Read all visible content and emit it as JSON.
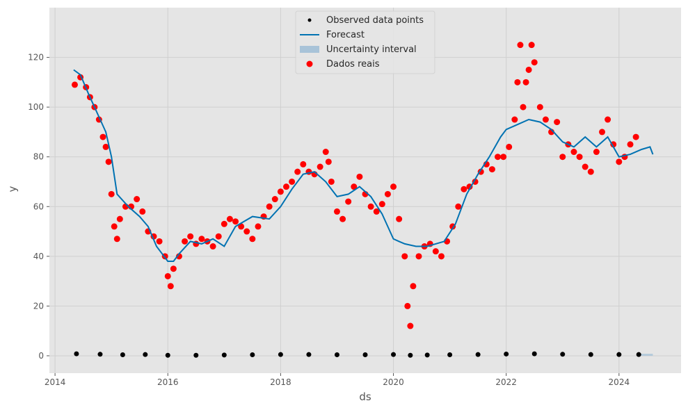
{
  "chart_data": {
    "type": "line",
    "xlabel": "ds",
    "ylabel": "y",
    "xlim": [
      2013.9,
      2025.1
    ],
    "ylim": [
      -7,
      140
    ],
    "x_ticks": [
      2014,
      2016,
      2018,
      2020,
      2022,
      2024
    ],
    "y_ticks": [
      0,
      20,
      40,
      60,
      80,
      100,
      120
    ],
    "grid": true,
    "legend_position": "top-center",
    "colors": {
      "background": "#e5e5e5",
      "grid": "#cfcfcf",
      "observed": "#000000",
      "forecast": "#0072B2",
      "uncertainty": "#a8c3d8",
      "actual": "#ff0000"
    },
    "legend": [
      {
        "label": "Observed data points",
        "kind": "dot"
      },
      {
        "label": "Forecast",
        "kind": "line"
      },
      {
        "label": "Uncertainty interval",
        "kind": "band"
      },
      {
        "label": "Dados reais",
        "kind": "marker"
      }
    ],
    "series": [
      {
        "name": "Observed data points",
        "kind": "scatter",
        "x": [
          2014.38,
          2014.8,
          2015.2,
          2015.6,
          2016.0,
          2016.5,
          2017.0,
          2017.5,
          2018.0,
          2018.5,
          2019.0,
          2019.5,
          2020.0,
          2020.3,
          2020.6,
          2021.0,
          2021.5,
          2022.0,
          2022.5,
          2023.0,
          2023.5,
          2024.0,
          2024.35
        ],
        "y": [
          0.8,
          0.6,
          0.4,
          0.5,
          0.2,
          0.2,
          0.3,
          0.4,
          0.5,
          0.5,
          0.4,
          0.4,
          0.5,
          0.2,
          0.3,
          0.4,
          0.5,
          0.7,
          0.8,
          0.6,
          0.5,
          0.5,
          0.5
        ]
      },
      {
        "name": "Forecast",
        "kind": "line",
        "x": [
          2014.33,
          2014.45,
          2014.6,
          2014.8,
          2014.9,
          2015.0,
          2015.1,
          2015.3,
          2015.5,
          2015.65,
          2015.8,
          2016.0,
          2016.1,
          2016.2,
          2016.4,
          2016.6,
          2016.8,
          2017.0,
          2017.2,
          2017.5,
          2017.8,
          2018.0,
          2018.2,
          2018.4,
          2018.6,
          2018.8,
          2019.0,
          2019.2,
          2019.4,
          2019.6,
          2019.8,
          2019.9,
          2020.0,
          2020.1,
          2020.2,
          2020.4,
          2020.6,
          2020.9,
          2021.1,
          2021.3,
          2021.5,
          2021.7,
          2021.9,
          2022.0,
          2022.2,
          2022.4,
          2022.6,
          2022.8,
          2023.0,
          2023.2,
          2023.4,
          2023.6,
          2023.8,
          2024.0,
          2024.2,
          2024.4,
          2024.55,
          2024.6
        ],
        "y": [
          115,
          113,
          105,
          95,
          90,
          80,
          65,
          60,
          56,
          52,
          44,
          38,
          38,
          41,
          46,
          45,
          47,
          44,
          52,
          56,
          55,
          60,
          67,
          73,
          74,
          70,
          64,
          65,
          68,
          64,
          57,
          52,
          47,
          46,
          45,
          44,
          44,
          46,
          53,
          65,
          73,
          80,
          88,
          91,
          93,
          95,
          94,
          91,
          86,
          84,
          88,
          84,
          88,
          80,
          81,
          83,
          84,
          81
        ]
      },
      {
        "name": "Uncertainty interval",
        "kind": "band",
        "x": [
          2024.35,
          2024.6
        ],
        "lower": [
          0,
          0
        ],
        "upper": [
          0.8,
          0.8
        ]
      },
      {
        "name": "Dados reais",
        "kind": "scatter",
        "x": [
          2014.35,
          2014.45,
          2014.55,
          2014.62,
          2014.7,
          2014.78,
          2014.85,
          2014.9,
          2014.95,
          2015.0,
          2015.05,
          2015.1,
          2015.15,
          2015.25,
          2015.35,
          2015.45,
          2015.55,
          2015.65,
          2015.75,
          2015.85,
          2015.95,
          2016.0,
          2016.05,
          2016.1,
          2016.2,
          2016.3,
          2016.4,
          2016.5,
          2016.6,
          2016.7,
          2016.8,
          2016.9,
          2017.0,
          2017.1,
          2017.2,
          2017.3,
          2017.4,
          2017.5,
          2017.6,
          2017.7,
          2017.8,
          2017.9,
          2018.0,
          2018.1,
          2018.2,
          2018.3,
          2018.4,
          2018.5,
          2018.6,
          2018.7,
          2018.8,
          2018.85,
          2018.9,
          2019.0,
          2019.1,
          2019.2,
          2019.3,
          2019.4,
          2019.5,
          2019.6,
          2019.7,
          2019.8,
          2019.9,
          2020.0,
          2020.1,
          2020.2,
          2020.25,
          2020.3,
          2020.35,
          2020.45,
          2020.55,
          2020.65,
          2020.75,
          2020.85,
          2020.95,
          2021.05,
          2021.15,
          2021.25,
          2021.35,
          2021.45,
          2021.55,
          2021.65,
          2021.75,
          2021.85,
          2021.95,
          2022.05,
          2022.15,
          2022.2,
          2022.25,
          2022.3,
          2022.35,
          2022.4,
          2022.45,
          2022.5,
          2022.6,
          2022.7,
          2022.8,
          2022.9,
          2023.0,
          2023.1,
          2023.2,
          2023.3,
          2023.4,
          2023.5,
          2023.6,
          2023.7,
          2023.8,
          2023.9,
          2024.0,
          2024.1,
          2024.2,
          2024.3
        ],
        "y": [
          109,
          112,
          108,
          104,
          100,
          95,
          88,
          84,
          78,
          65,
          52,
          47,
          55,
          60,
          60,
          63,
          58,
          50,
          48,
          46,
          40,
          32,
          28,
          35,
          40,
          46,
          48,
          45,
          47,
          46,
          44,
          48,
          53,
          55,
          54,
          52,
          50,
          47,
          52,
          56,
          60,
          63,
          66,
          68,
          70,
          74,
          77,
          74,
          73,
          76,
          82,
          78,
          70,
          58,
          55,
          62,
          68,
          72,
          65,
          60,
          58,
          61,
          65,
          68,
          55,
          40,
          20,
          12,
          28,
          40,
          44,
          45,
          42,
          40,
          46,
          52,
          60,
          67,
          68,
          70,
          74,
          77,
          75,
          80,
          80,
          84,
          95,
          110,
          125,
          100,
          110,
          115,
          125,
          118,
          100,
          95,
          90,
          94,
          80,
          85,
          82,
          80,
          76,
          74,
          82,
          90,
          95,
          85,
          78,
          80,
          85,
          88
        ]
      }
    ]
  }
}
